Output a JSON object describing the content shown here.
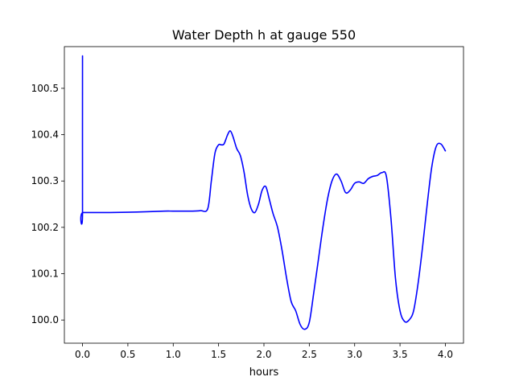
{
  "chart_data": {
    "type": "line",
    "title": "Water Depth h at gauge 550",
    "xlabel": "hours",
    "ylabel": "",
    "xlim": [
      -0.2,
      4.2
    ],
    "ylim": [
      99.95,
      100.59
    ],
    "xticks": [
      0.0,
      0.5,
      1.0,
      1.5,
      2.0,
      2.5,
      3.0,
      3.5,
      4.0
    ],
    "xtick_labels": [
      "0.0",
      "0.5",
      "1.0",
      "1.5",
      "2.0",
      "2.5",
      "3.0",
      "3.5",
      "4.0"
    ],
    "yticks": [
      100.0,
      100.1,
      100.2,
      100.3,
      100.4,
      100.5
    ],
    "ytick_labels": [
      "100.0",
      "100.1",
      "100.2",
      "100.3",
      "100.4",
      "100.5"
    ],
    "grid": false,
    "legend": "none",
    "series": [
      {
        "color": "#0000ff",
        "x": [
          0.0,
          0.0,
          0.005,
          0.3,
          0.6,
          0.9,
          1.0,
          1.2,
          1.3,
          1.38,
          1.42,
          1.46,
          1.5,
          1.53,
          1.56,
          1.6,
          1.63,
          1.66,
          1.7,
          1.74,
          1.78,
          1.82,
          1.86,
          1.9,
          1.94,
          1.98,
          2.02,
          2.06,
          2.1,
          2.15,
          2.2,
          2.25,
          2.3,
          2.35,
          2.4,
          2.45,
          2.5,
          2.55,
          2.6,
          2.65,
          2.7,
          2.75,
          2.8,
          2.85,
          2.9,
          2.95,
          3.0,
          3.05,
          3.1,
          3.15,
          3.2,
          3.25,
          3.3,
          3.35,
          3.4,
          3.45,
          3.5,
          3.55,
          3.6,
          3.65,
          3.7,
          3.75,
          3.8,
          3.85,
          3.9,
          3.95,
          4.0
        ],
        "y": [
          100.57,
          100.232,
          100.232,
          100.232,
          100.233,
          100.235,
          100.235,
          100.235,
          100.236,
          100.24,
          100.3,
          100.36,
          100.378,
          100.378,
          100.38,
          100.4,
          100.408,
          100.395,
          100.37,
          100.355,
          100.32,
          100.27,
          100.24,
          100.232,
          100.25,
          100.28,
          100.288,
          100.26,
          100.23,
          100.2,
          100.15,
          100.09,
          100.04,
          100.02,
          99.99,
          99.98,
          99.995,
          100.06,
          100.13,
          100.2,
          100.26,
          100.3,
          100.315,
          100.3,
          100.275,
          100.28,
          100.295,
          100.298,
          100.295,
          100.305,
          100.31,
          100.312,
          100.318,
          100.31,
          100.22,
          100.09,
          100.02,
          99.997,
          100.0,
          100.02,
          100.08,
          100.16,
          100.25,
          100.33,
          100.375,
          100.38,
          100.365
        ]
      }
    ]
  }
}
